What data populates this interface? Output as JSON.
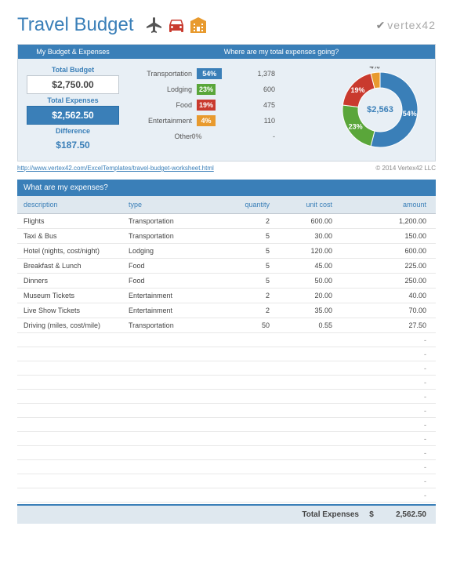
{
  "title": "Travel Budget",
  "logo_text": "vertex42",
  "budget": {
    "section_label": "My Budget & Expenses",
    "total_budget_label": "Total Budget",
    "total_budget_value": "$2,750.00",
    "total_expenses_label": "Total Expenses",
    "total_expenses_value": "$2,562.50",
    "difference_label": "Difference",
    "difference_value": "$187.50"
  },
  "where": {
    "section_label": "Where are my total expenses going?",
    "rows": [
      {
        "label": "Transportation",
        "pct": "54%",
        "pct_num": 54,
        "value": "1,378",
        "color": "#3a7fb8"
      },
      {
        "label": "Lodging",
        "pct": "23%",
        "pct_num": 23,
        "value": "600",
        "color": "#5aa63a"
      },
      {
        "label": "Food",
        "pct": "19%",
        "pct_num": 19,
        "value": "475",
        "color": "#c93a2e"
      },
      {
        "label": "Entertainment",
        "pct": "4%",
        "pct_num": 4,
        "value": "110",
        "color": "#e89a2e"
      },
      {
        "label": "Other",
        "pct": "0%",
        "pct_num": 0,
        "value": "-",
        "color": "#ccc"
      }
    ],
    "donut": {
      "center": "$2,563",
      "slices": [
        {
          "pct": 54,
          "color": "#3a7fb8",
          "label_pct": "54%"
        },
        {
          "pct": 23,
          "color": "#5aa63a",
          "label_pct": "23%"
        },
        {
          "pct": 19,
          "color": "#c93a2e",
          "label_pct": "19%"
        },
        {
          "pct": 4,
          "color": "#e89a2e",
          "label_pct": "4%"
        }
      ]
    }
  },
  "link_url": "http://www.vertex42.com/ExcelTemplates/travel-budget-worksheet.html",
  "copyright": "© 2014 Vertex42 LLC",
  "expenses": {
    "header": "What are my expenses?",
    "columns": {
      "desc": "description",
      "type": "type",
      "qty": "quantity",
      "cost": "unit cost",
      "amt": "amount"
    },
    "rows": [
      {
        "desc": "Flights",
        "type": "Transportation",
        "qty": "2",
        "cost": "600.00",
        "amt": "1,200.00"
      },
      {
        "desc": "Taxi & Bus",
        "type": "Transportation",
        "qty": "5",
        "cost": "30.00",
        "amt": "150.00"
      },
      {
        "desc": "Hotel (nights, cost/night)",
        "type": "Lodging",
        "qty": "5",
        "cost": "120.00",
        "amt": "600.00"
      },
      {
        "desc": "Breakfast & Lunch",
        "type": "Food",
        "qty": "5",
        "cost": "45.00",
        "amt": "225.00"
      },
      {
        "desc": "Dinners",
        "type": "Food",
        "qty": "5",
        "cost": "50.00",
        "amt": "250.00"
      },
      {
        "desc": "Museum Tickets",
        "type": "Entertainment",
        "qty": "2",
        "cost": "20.00",
        "amt": "40.00"
      },
      {
        "desc": "Live Show Tickets",
        "type": "Entertainment",
        "qty": "2",
        "cost": "35.00",
        "amt": "70.00"
      },
      {
        "desc": "Driving (miles, cost/mile)",
        "type": "Transportation",
        "qty": "50",
        "cost": "0.55",
        "amt": "27.50"
      }
    ],
    "empty_rows": 12,
    "total_label": "Total Expenses",
    "total_currency": "$",
    "total_value": "2,562.50"
  },
  "colors": {
    "primary": "#3a7fb8",
    "light_bg": "#e8eff5",
    "header_bg": "#dfe8ef"
  }
}
